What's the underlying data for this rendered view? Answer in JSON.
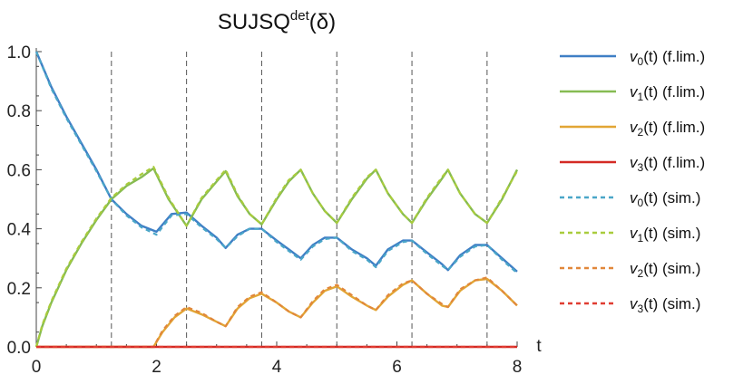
{
  "chart_data": {
    "type": "line",
    "title": {
      "main": "SUJSQ",
      "superscript": "det",
      "argument": "(δ)"
    },
    "xlabel": "t",
    "ylabel": "",
    "xlim": [
      0,
      8
    ],
    "ylim": [
      0,
      1
    ],
    "x_ticks": [
      "0",
      "2",
      "4",
      "6",
      "8"
    ],
    "y_ticks": [
      "0.0",
      "0.2",
      "0.4",
      "0.6",
      "0.8",
      "1.0"
    ],
    "grid": false,
    "vertical_reference_lines": [
      1.25,
      2.5,
      3.75,
      5.0,
      6.25,
      7.5
    ],
    "legend_position": "right",
    "series": [
      {
        "name": "v0(t) (f.lim.)",
        "label_sub": "0",
        "label_suffix": "(t) (f.lim.)",
        "style": "solid",
        "color": "#3f7fc5",
        "points": [
          [
            0,
            1.0
          ],
          [
            0.25,
            0.88
          ],
          [
            0.5,
            0.78
          ],
          [
            0.75,
            0.69
          ],
          [
            1.0,
            0.6
          ],
          [
            1.25,
            0.5
          ],
          [
            1.5,
            0.45
          ],
          [
            1.75,
            0.41
          ],
          [
            2.0,
            0.39
          ],
          [
            2.25,
            0.45
          ],
          [
            2.5,
            0.455
          ],
          [
            2.75,
            0.41
          ],
          [
            3.0,
            0.37
          ],
          [
            3.15,
            0.335
          ],
          [
            3.35,
            0.38
          ],
          [
            3.55,
            0.4
          ],
          [
            3.75,
            0.4
          ],
          [
            4.0,
            0.36
          ],
          [
            4.2,
            0.33
          ],
          [
            4.4,
            0.3
          ],
          [
            4.6,
            0.345
          ],
          [
            4.8,
            0.37
          ],
          [
            5.0,
            0.37
          ],
          [
            5.25,
            0.33
          ],
          [
            5.5,
            0.3
          ],
          [
            5.65,
            0.275
          ],
          [
            5.85,
            0.33
          ],
          [
            6.1,
            0.36
          ],
          [
            6.25,
            0.36
          ],
          [
            6.5,
            0.32
          ],
          [
            6.75,
            0.28
          ],
          [
            6.85,
            0.26
          ],
          [
            7.05,
            0.31
          ],
          [
            7.3,
            0.345
          ],
          [
            7.5,
            0.345
          ],
          [
            7.75,
            0.3
          ],
          [
            8.0,
            0.255
          ]
        ]
      },
      {
        "name": "v1(t) (f.lim.)",
        "label_sub": "1",
        "label_suffix": "(t) (f.lim.)",
        "style": "solid",
        "color": "#86bb52",
        "points": [
          [
            0,
            0.0
          ],
          [
            0.1,
            0.07
          ],
          [
            0.25,
            0.15
          ],
          [
            0.5,
            0.26
          ],
          [
            0.75,
            0.35
          ],
          [
            1.0,
            0.43
          ],
          [
            1.25,
            0.5
          ],
          [
            1.5,
            0.545
          ],
          [
            1.75,
            0.575
          ],
          [
            1.95,
            0.605
          ],
          [
            2.2,
            0.5
          ],
          [
            2.5,
            0.41
          ],
          [
            2.75,
            0.5
          ],
          [
            3.0,
            0.56
          ],
          [
            3.15,
            0.595
          ],
          [
            3.35,
            0.51
          ],
          [
            3.55,
            0.45
          ],
          [
            3.75,
            0.415
          ],
          [
            4.0,
            0.5
          ],
          [
            4.2,
            0.56
          ],
          [
            4.4,
            0.6
          ],
          [
            4.6,
            0.52
          ],
          [
            4.8,
            0.46
          ],
          [
            5.0,
            0.42
          ],
          [
            5.25,
            0.5
          ],
          [
            5.5,
            0.57
          ],
          [
            5.65,
            0.6
          ],
          [
            5.85,
            0.52
          ],
          [
            6.1,
            0.45
          ],
          [
            6.25,
            0.42
          ],
          [
            6.5,
            0.5
          ],
          [
            6.75,
            0.57
          ],
          [
            6.85,
            0.6
          ],
          [
            7.05,
            0.52
          ],
          [
            7.3,
            0.45
          ],
          [
            7.5,
            0.42
          ],
          [
            7.75,
            0.5
          ],
          [
            8.0,
            0.6
          ]
        ]
      },
      {
        "name": "v2(t) (f.lim.)",
        "label_sub": "2",
        "label_suffix": "(t) (f.lim.)",
        "style": "solid",
        "color": "#e2a635",
        "points": [
          [
            0,
            0
          ],
          [
            1.95,
            0.0
          ],
          [
            2.1,
            0.05
          ],
          [
            2.3,
            0.1
          ],
          [
            2.5,
            0.13
          ],
          [
            2.75,
            0.11
          ],
          [
            3.0,
            0.085
          ],
          [
            3.15,
            0.07
          ],
          [
            3.35,
            0.13
          ],
          [
            3.55,
            0.165
          ],
          [
            3.75,
            0.18
          ],
          [
            4.0,
            0.15
          ],
          [
            4.2,
            0.12
          ],
          [
            4.4,
            0.1
          ],
          [
            4.6,
            0.15
          ],
          [
            4.8,
            0.19
          ],
          [
            5.0,
            0.205
          ],
          [
            5.25,
            0.17
          ],
          [
            5.5,
            0.14
          ],
          [
            5.65,
            0.125
          ],
          [
            5.85,
            0.17
          ],
          [
            6.1,
            0.21
          ],
          [
            6.25,
            0.225
          ],
          [
            6.5,
            0.18
          ],
          [
            6.75,
            0.14
          ],
          [
            6.85,
            0.135
          ],
          [
            7.05,
            0.19
          ],
          [
            7.3,
            0.225
          ],
          [
            7.5,
            0.23
          ],
          [
            7.75,
            0.19
          ],
          [
            8.0,
            0.14
          ]
        ]
      },
      {
        "name": "v3(t) (f.lim.)",
        "label_sub": "3",
        "label_suffix": "(t) (f.lim.)",
        "style": "solid",
        "color": "#d42a25",
        "points": [
          [
            0,
            0
          ],
          [
            8,
            0
          ]
        ]
      },
      {
        "name": "v0(t) (sim.)",
        "label_sub": "0",
        "label_suffix": "(t) (sim.)",
        "style": "dashed",
        "color": "#4aa6c8",
        "points": [
          [
            0,
            1.0
          ],
          [
            0.25,
            0.875
          ],
          [
            0.5,
            0.775
          ],
          [
            0.75,
            0.685
          ],
          [
            1.0,
            0.595
          ],
          [
            1.25,
            0.5
          ],
          [
            1.5,
            0.445
          ],
          [
            1.75,
            0.405
          ],
          [
            2.0,
            0.38
          ],
          [
            2.25,
            0.445
          ],
          [
            2.5,
            0.45
          ],
          [
            2.75,
            0.405
          ],
          [
            3.0,
            0.365
          ],
          [
            3.15,
            0.335
          ],
          [
            3.35,
            0.375
          ],
          [
            3.55,
            0.4
          ],
          [
            3.75,
            0.4
          ],
          [
            4.0,
            0.355
          ],
          [
            4.2,
            0.325
          ],
          [
            4.4,
            0.295
          ],
          [
            4.6,
            0.34
          ],
          [
            4.8,
            0.365
          ],
          [
            5.0,
            0.37
          ],
          [
            5.25,
            0.325
          ],
          [
            5.5,
            0.295
          ],
          [
            5.65,
            0.27
          ],
          [
            5.85,
            0.325
          ],
          [
            6.1,
            0.355
          ],
          [
            6.25,
            0.36
          ],
          [
            6.5,
            0.315
          ],
          [
            6.75,
            0.275
          ],
          [
            6.85,
            0.26
          ],
          [
            7.05,
            0.305
          ],
          [
            7.3,
            0.34
          ],
          [
            7.5,
            0.345
          ],
          [
            7.75,
            0.295
          ],
          [
            8.0,
            0.25
          ]
        ]
      },
      {
        "name": "v1(t) (sim.)",
        "label_sub": "1",
        "label_suffix": "(t) (sim.)",
        "style": "dashed",
        "color": "#a9cc3c",
        "points": [
          [
            0,
            0.0
          ],
          [
            0.1,
            0.075
          ],
          [
            0.25,
            0.155
          ],
          [
            0.5,
            0.265
          ],
          [
            0.75,
            0.355
          ],
          [
            1.0,
            0.435
          ],
          [
            1.25,
            0.505
          ],
          [
            1.5,
            0.55
          ],
          [
            1.75,
            0.585
          ],
          [
            1.95,
            0.61
          ],
          [
            2.2,
            0.505
          ],
          [
            2.5,
            0.41
          ],
          [
            2.75,
            0.505
          ],
          [
            3.0,
            0.565
          ],
          [
            3.15,
            0.6
          ],
          [
            3.35,
            0.515
          ],
          [
            3.55,
            0.45
          ],
          [
            3.75,
            0.415
          ],
          [
            4.0,
            0.505
          ],
          [
            4.2,
            0.565
          ],
          [
            4.4,
            0.6
          ],
          [
            4.6,
            0.52
          ],
          [
            4.8,
            0.46
          ],
          [
            5.0,
            0.42
          ],
          [
            5.25,
            0.505
          ],
          [
            5.5,
            0.575
          ],
          [
            5.65,
            0.6
          ],
          [
            5.85,
            0.52
          ],
          [
            6.1,
            0.45
          ],
          [
            6.25,
            0.42
          ],
          [
            6.5,
            0.505
          ],
          [
            6.75,
            0.575
          ],
          [
            6.85,
            0.6
          ],
          [
            7.05,
            0.52
          ],
          [
            7.3,
            0.45
          ],
          [
            7.5,
            0.42
          ],
          [
            7.75,
            0.505
          ],
          [
            8.0,
            0.595
          ]
        ]
      },
      {
        "name": "v2(t) (sim.)",
        "label_sub": "2",
        "label_suffix": "(t) (sim.)",
        "style": "dashed",
        "color": "#e1873a",
        "points": [
          [
            0,
            0
          ],
          [
            1.95,
            0.0
          ],
          [
            2.1,
            0.055
          ],
          [
            2.3,
            0.105
          ],
          [
            2.5,
            0.135
          ],
          [
            2.75,
            0.115
          ],
          [
            3.0,
            0.085
          ],
          [
            3.15,
            0.07
          ],
          [
            3.35,
            0.135
          ],
          [
            3.55,
            0.17
          ],
          [
            3.75,
            0.185
          ],
          [
            4.0,
            0.15
          ],
          [
            4.2,
            0.12
          ],
          [
            4.4,
            0.1
          ],
          [
            4.6,
            0.155
          ],
          [
            4.8,
            0.195
          ],
          [
            5.0,
            0.21
          ],
          [
            5.25,
            0.175
          ],
          [
            5.5,
            0.14
          ],
          [
            5.65,
            0.125
          ],
          [
            5.85,
            0.175
          ],
          [
            6.1,
            0.215
          ],
          [
            6.25,
            0.225
          ],
          [
            6.5,
            0.18
          ],
          [
            6.75,
            0.145
          ],
          [
            6.85,
            0.135
          ],
          [
            7.05,
            0.195
          ],
          [
            7.3,
            0.225
          ],
          [
            7.5,
            0.235
          ],
          [
            7.75,
            0.19
          ],
          [
            8.0,
            0.14
          ]
        ]
      },
      {
        "name": "v3(t) (sim.)",
        "label_sub": "3",
        "label_suffix": "(t) (sim.)",
        "style": "dashed",
        "color": "#e03c31",
        "points": [
          [
            0,
            0
          ],
          [
            8,
            0
          ]
        ]
      }
    ]
  }
}
